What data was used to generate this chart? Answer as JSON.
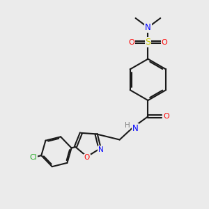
{
  "background_color": "#ebebeb",
  "bond_color": "#1a1a1a",
  "N_color": "#0000ff",
  "O_color": "#ff0000",
  "S_color": "#cccc00",
  "Cl_color": "#22aa22",
  "figsize": [
    3.0,
    3.0
  ],
  "dpi": 100,
  "xlim": [
    0,
    10
  ],
  "ylim": [
    0,
    10
  ]
}
